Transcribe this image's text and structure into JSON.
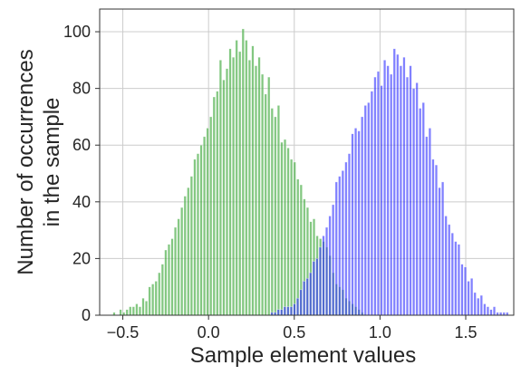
{
  "chart_data": {
    "type": "bar",
    "title": "",
    "xlabel": "Sample element values",
    "ylabel_lines": [
      "Number of occurrences",
      "in the sample"
    ],
    "xlim": [
      -0.635,
      1.78
    ],
    "ylim": [
      0,
      108
    ],
    "xticks": [
      -0.5,
      0.0,
      0.5,
      1.0,
      1.5
    ],
    "xtick_labels": [
      "−0.5",
      "0.0",
      "0.5",
      "1.0",
      "1.5"
    ],
    "yticks": [
      0,
      20,
      40,
      60,
      80,
      100
    ],
    "ytick_labels": [
      "0",
      "20",
      "40",
      "60",
      "80",
      "100"
    ],
    "grid": true,
    "series": [
      {
        "color": "#4daf4a",
        "opacity": 0.7,
        "bin_start": -0.56,
        "bin_width": 0.0188,
        "values": [
          1,
          0,
          2,
          1,
          2,
          3,
          3,
          4,
          3,
          6,
          5,
          10,
          11,
          12,
          15,
          18,
          23,
          25,
          27,
          31,
          34,
          38,
          42,
          45,
          49,
          55,
          57,
          60,
          63,
          66,
          70,
          77,
          79,
          90,
          83,
          87,
          94,
          91,
          97,
          93,
          101,
          97,
          90,
          95,
          88,
          91,
          85,
          78,
          84,
          73,
          70,
          74,
          61,
          62,
          59,
          55,
          54,
          48,
          46,
          41,
          38,
          33,
          34,
          28,
          27,
          26,
          24,
          21,
          15,
          11,
          10,
          9,
          6,
          5,
          4,
          3,
          2,
          1
        ]
      },
      {
        "color": "#2b2bff",
        "opacity": 0.6,
        "bin_start": 0.36,
        "bin_width": 0.0188,
        "values": [
          1,
          1,
          2,
          2,
          3,
          3,
          3,
          4,
          6,
          9,
          12,
          13,
          15,
          19,
          20,
          24,
          28,
          31,
          35,
          39,
          47,
          49,
          51,
          54,
          57,
          64,
          66,
          65,
          70,
          74,
          75,
          79,
          84,
          86,
          81,
          90,
          88,
          85,
          94,
          92,
          88,
          91,
          84,
          88,
          80,
          82,
          73,
          75,
          63,
          66,
          55,
          53,
          45,
          47,
          35,
          32,
          29,
          26,
          25,
          18,
          17,
          12,
          13,
          8,
          6,
          7,
          4,
          3,
          2,
          3,
          1,
          1,
          1,
          1,
          0,
          0,
          0,
          0,
          0,
          1
        ]
      }
    ]
  }
}
